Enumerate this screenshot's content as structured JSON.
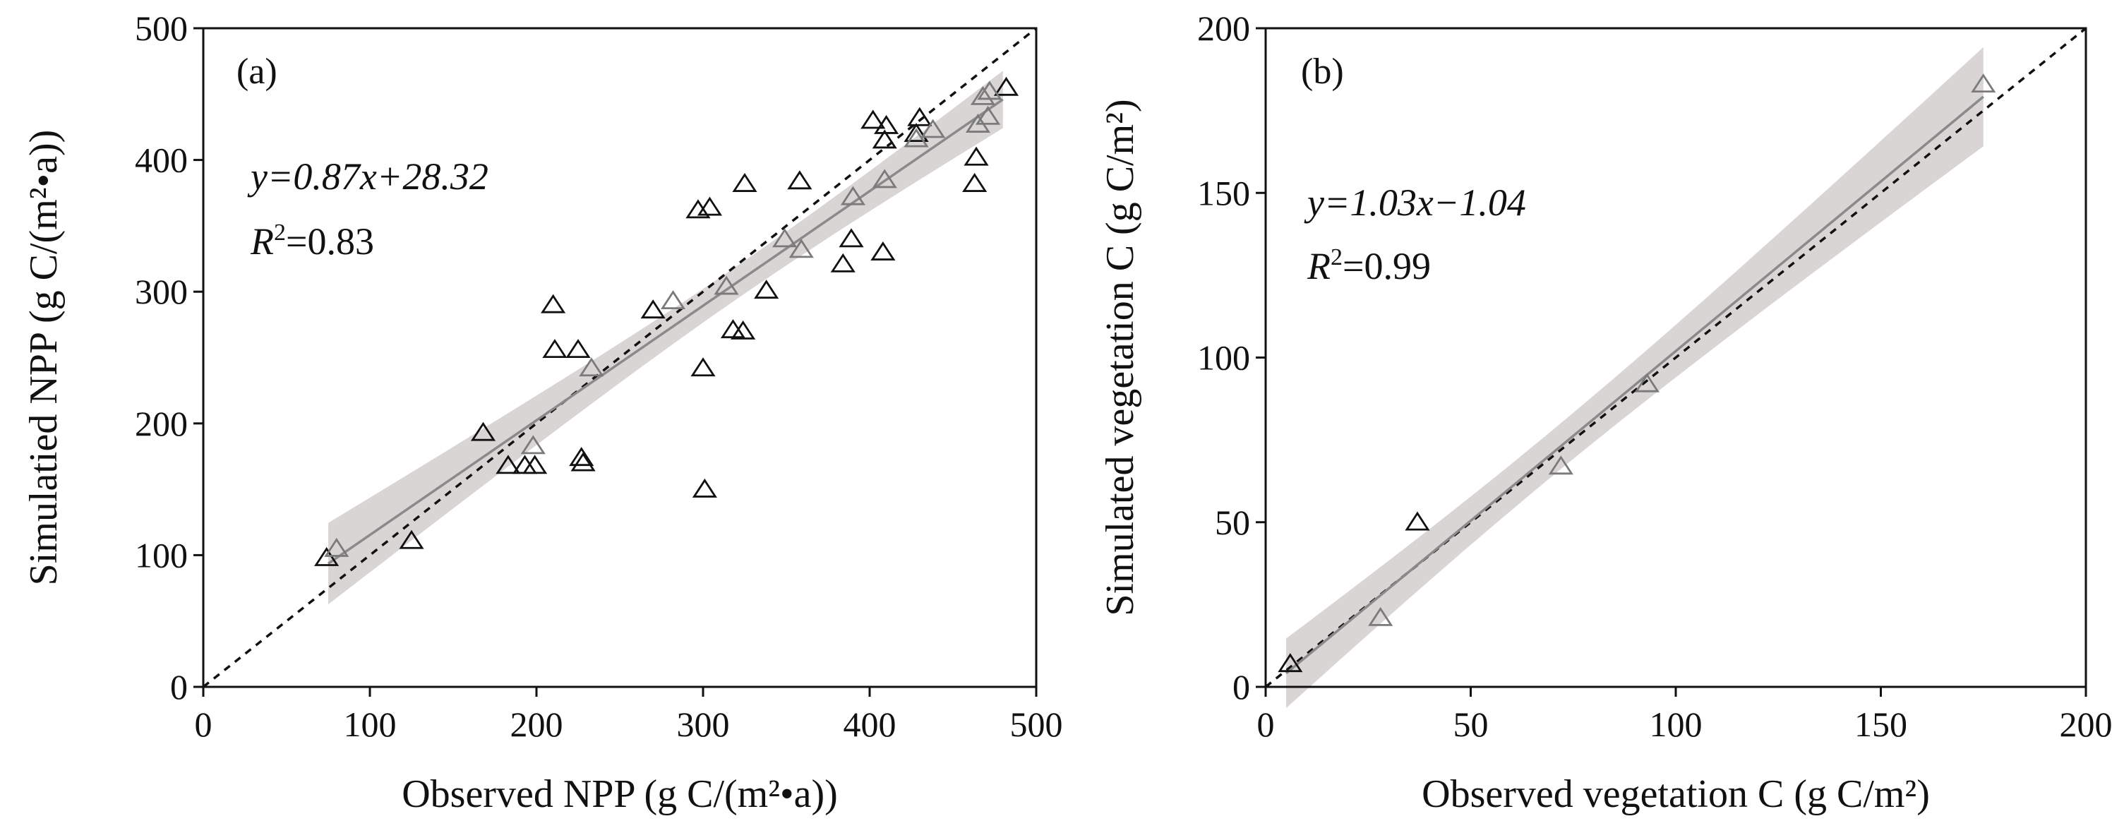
{
  "chart_data": [
    {
      "type": "scatter",
      "panel_label": "(a)",
      "xlabel": "Observed NPP (g C/(m²•a))",
      "ylabel": "Simulatied NPP (g C/(m²•a))",
      "xlim": [
        0,
        500
      ],
      "ylim": [
        0,
        500
      ],
      "xticks": [
        "0",
        "100",
        "200",
        "300",
        "400",
        "500"
      ],
      "yticks": [
        "0",
        "100",
        "200",
        "300",
        "400",
        "500"
      ],
      "equation": "y=0.87x+28.32",
      "r2_label": "R",
      "r2_value": "=0.83",
      "fit": {
        "slope": 0.87,
        "intercept": 28.32,
        "x_range": [
          75,
          480
        ]
      },
      "reference_line": "1:1 dashed",
      "grid": false,
      "series": [
        {
          "color": "#111111",
          "x": [
            74,
            125,
            168,
            183,
            193,
            199,
            210,
            211,
            225,
            227,
            228,
            270,
            297,
            300,
            301,
            304,
            318,
            324,
            325,
            338,
            358,
            384,
            389,
            402,
            408,
            409,
            410,
            428,
            430,
            463,
            464,
            482
          ],
          "y": [
            98,
            111,
            193,
            168,
            168,
            168,
            290,
            256,
            256,
            174,
            170,
            286,
            362,
            242,
            150,
            364,
            271,
            270,
            382,
            301,
            384,
            321,
            340,
            430,
            330,
            415,
            426,
            420,
            432,
            382,
            402,
            455
          ]
        },
        {
          "color": "#7a7a7a",
          "x": [
            80,
            198,
            233,
            282,
            314,
            349,
            359,
            390,
            409,
            428,
            438,
            465,
            468,
            471,
            472
          ],
          "y": [
            105,
            183,
            242,
            293,
            304,
            340,
            332,
            372,
            385,
            416,
            423,
            427,
            448,
            433,
            452
          ]
        }
      ]
    },
    {
      "type": "scatter",
      "panel_label": "(b)",
      "xlabel": "Observed vegetation C (g C/m²)",
      "ylabel": "Simulated vegetation C (g C/m²)",
      "xlim": [
        0,
        200
      ],
      "ylim": [
        0,
        200
      ],
      "xticks": [
        "0",
        "50",
        "100",
        "150",
        "200"
      ],
      "yticks": [
        "0",
        "50",
        "100",
        "150",
        "200"
      ],
      "equation": "y=1.03x−1.04",
      "r2_label": "R",
      "r2_value": "=0.99",
      "fit": {
        "slope": 1.03,
        "intercept": -1.04,
        "x_range": [
          5,
          175
        ]
      },
      "reference_line": "1:1 dashed",
      "grid": false,
      "series": [
        {
          "color": "#111111",
          "x": [
            6,
            37
          ],
          "y": [
            7,
            50
          ]
        },
        {
          "color": "#7a7a7a",
          "x": [
            28,
            72,
            93,
            175
          ],
          "y": [
            21,
            67,
            92,
            183
          ]
        }
      ]
    }
  ]
}
